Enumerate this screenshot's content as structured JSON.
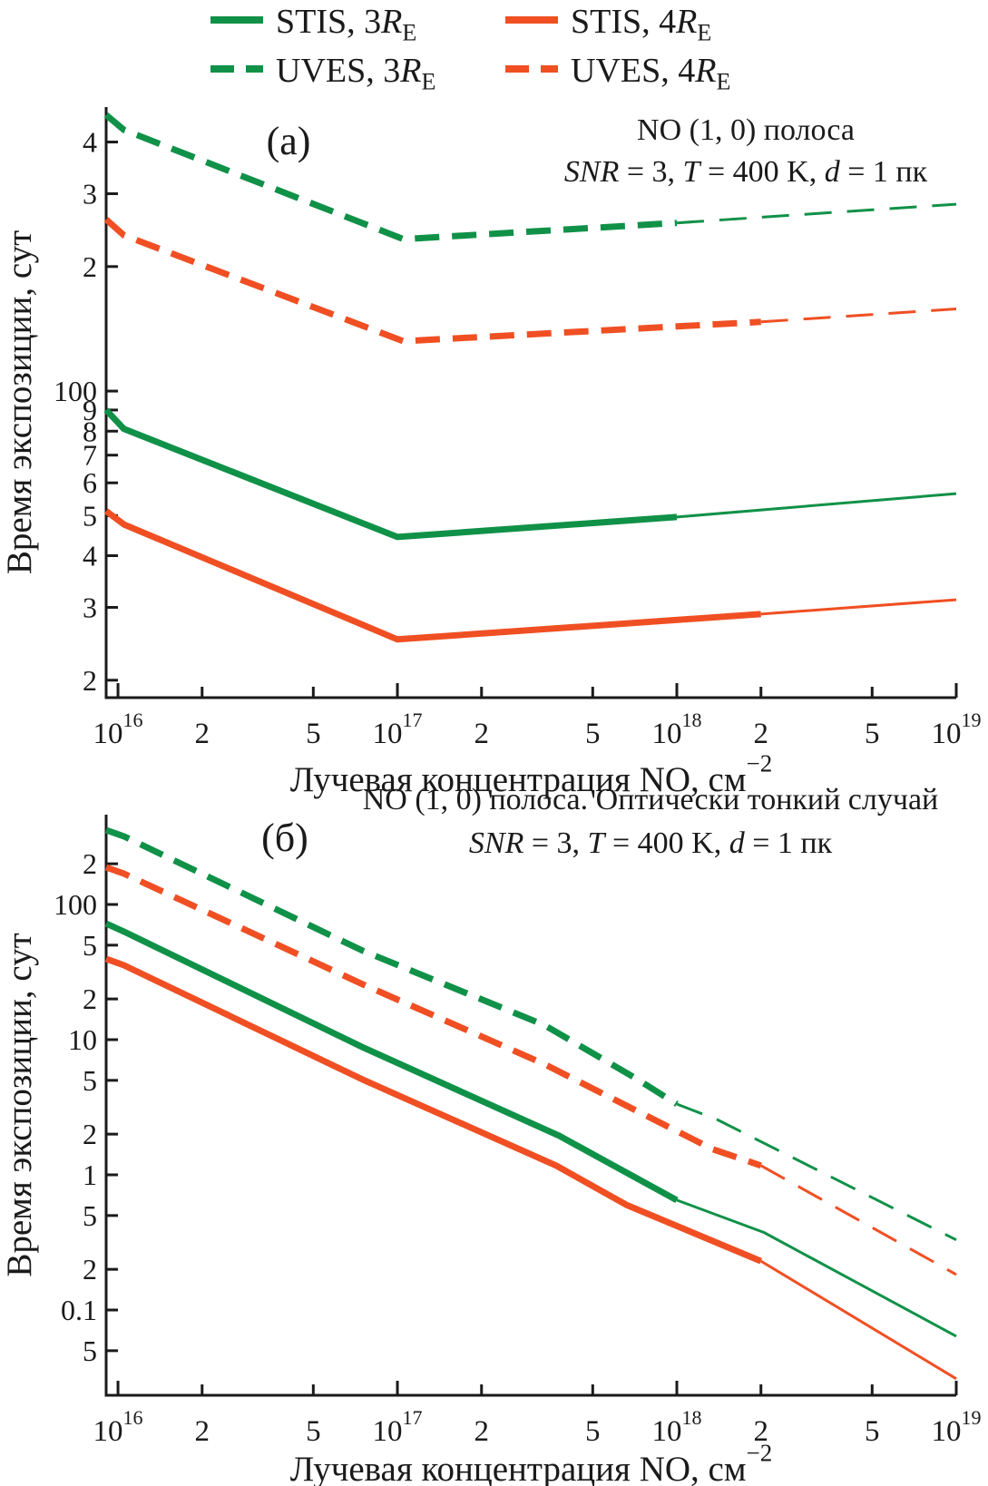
{
  "figure": {
    "background": "#ffffff",
    "colors": {
      "green": "#109148",
      "red": "#F04F23",
      "axis": "#1a1a1a",
      "text": "#1a1a1a"
    }
  },
  "legend": {
    "items": [
      {
        "name": "stis-3re",
        "label": "STIS, 3R_E",
        "parts": [
          {
            "t": "STIS, 3"
          },
          {
            "t": "R",
            "i": true
          },
          {
            "t": "E",
            "sub": true
          }
        ],
        "color": "green",
        "dashed": false
      },
      {
        "name": "stis-4re",
        "label": "STIS, 4R_E",
        "parts": [
          {
            "t": "STIS, 4"
          },
          {
            "t": "R",
            "i": true
          },
          {
            "t": "E",
            "sub": true
          }
        ],
        "color": "red",
        "dashed": false
      },
      {
        "name": "uves-3re",
        "label": "UVES, 3R_E",
        "parts": [
          {
            "t": "UVES, 3"
          },
          {
            "t": "R",
            "i": true
          },
          {
            "t": "E",
            "sub": true
          }
        ],
        "color": "green",
        "dashed": true
      },
      {
        "name": "uves-4re",
        "label": "UVES, 4R_E",
        "parts": [
          {
            "t": "UVES, 4"
          },
          {
            "t": "R",
            "i": true
          },
          {
            "t": "E",
            "sub": true
          }
        ],
        "color": "red",
        "dashed": true
      }
    ]
  },
  "chart_data": [
    {
      "type": "line",
      "panel_label": "(а)",
      "title": "NO (1, 0) полоса",
      "subtitle": "SNR = 3, T = 400 K, d = 1 пк",
      "subtitle_parts": [
        {
          "t": "SNR",
          "i": true
        },
        {
          "t": " = 3, "
        },
        {
          "t": "T",
          "i": true
        },
        {
          "t": " = 400 K, "
        },
        {
          "t": "d",
          "i": true
        },
        {
          "t": " = 1 пк"
        }
      ],
      "xlabel": "Лучевая концентрация NO, см⁻²",
      "xlabel_parts": [
        {
          "t": "Лучевая концентрация NO, см"
        },
        {
          "t": "−2",
          "sup": true
        }
      ],
      "ylabel": "Время экспозиции, сут",
      "grid": false,
      "x_axis": {
        "scale": "log",
        "min": 9070000000000000.0,
        "max": 1e+19,
        "ticks": [
          {
            "v": 1e+16,
            "base": "10",
            "sup": "16"
          },
          {
            "v": 2e+16,
            "base": "2"
          },
          {
            "v": 5e+16,
            "base": "5"
          },
          {
            "v": 1e+17,
            "base": "10",
            "sup": "17"
          },
          {
            "v": 2e+17,
            "base": "2"
          },
          {
            "v": 5e+17,
            "base": "5"
          },
          {
            "v": 1e+18,
            "base": "10",
            "sup": "18"
          },
          {
            "v": 2e+18,
            "base": "2"
          },
          {
            "v": 5e+18,
            "base": "5"
          },
          {
            "v": 1e+19,
            "base": "10",
            "sup": "19"
          }
        ]
      },
      "y_axis": {
        "scale": "log",
        "min": 18.15,
        "max": 486,
        "ticks": [
          {
            "v": 400,
            "label": "4"
          },
          {
            "v": 300,
            "label": "3"
          },
          {
            "v": 200,
            "label": "2"
          },
          {
            "v": 100,
            "label": "100"
          },
          {
            "v": 90,
            "label": "9"
          },
          {
            "v": 80,
            "label": "8"
          },
          {
            "v": 70,
            "label": "7"
          },
          {
            "v": 60,
            "label": "6"
          },
          {
            "v": 50,
            "label": "5"
          },
          {
            "v": 40,
            "label": "4"
          },
          {
            "v": 30,
            "label": "3"
          },
          {
            "v": 20,
            "label": "2"
          }
        ]
      },
      "series": [
        {
          "name": "UVES, 3RE",
          "color": "green",
          "dashed": true,
          "thin_from": 1e+18,
          "points": [
            [
              9070000000000000.0,
              465
            ],
            [
              1.05e+16,
              428
            ],
            [
              1.05e+17,
              233
            ],
            [
              1e+18,
              255
            ],
            [
              1e+19,
              283
            ]
          ]
        },
        {
          "name": "UVES, 4RE",
          "color": "red",
          "dashed": true,
          "thin_from": 2e+18,
          "points": [
            [
              9070000000000000.0,
              260
            ],
            [
              1.05e+16,
              238
            ],
            [
              1.05e+17,
              132
            ],
            [
              2e+18,
              147
            ],
            [
              1e+19,
              158
            ]
          ]
        },
        {
          "name": "STIS, 3RE",
          "color": "green",
          "dashed": false,
          "thin_from": 1e+18,
          "points": [
            [
              9070000000000000.0,
              90
            ],
            [
              1.05e+16,
              81
            ],
            [
              1e+17,
              44.4
            ],
            [
              1e+18,
              49.6
            ],
            [
              1e+19,
              56.5
            ]
          ]
        },
        {
          "name": "STIS, 4RE",
          "color": "red",
          "dashed": false,
          "thin_from": 2e+18,
          "points": [
            [
              9070000000000000.0,
              51.3
            ],
            [
              1.05e+16,
              47.6
            ],
            [
              1e+17,
              25.1
            ],
            [
              2e+18,
              28.9
            ],
            [
              1e+19,
              31.3
            ]
          ]
        }
      ]
    },
    {
      "type": "line",
      "panel_label": "(б)",
      "title": "NO (1, 0) полоса. Оптически тонкий случай",
      "subtitle": "SNR = 3, T = 400 K, d = 1 пк",
      "subtitle_parts": [
        {
          "t": "SNR",
          "i": true
        },
        {
          "t": " = 3, "
        },
        {
          "t": "T",
          "i": true
        },
        {
          "t": " = 400 K, "
        },
        {
          "t": "d",
          "i": true
        },
        {
          "t": " = 1 пк"
        }
      ],
      "xlabel": "Лучевая концентрация NO, см⁻²",
      "xlabel_parts": [
        {
          "t": "Лучевая концентрация NO, см"
        },
        {
          "t": "−2",
          "sup": true
        }
      ],
      "ylabel": "Время экспозиции, сут",
      "grid": false,
      "x_axis": {
        "scale": "log",
        "min": 9070000000000000.0,
        "max": 1e+19,
        "ticks": [
          {
            "v": 1e+16,
            "base": "10",
            "sup": "16"
          },
          {
            "v": 2e+16,
            "base": "2"
          },
          {
            "v": 5e+16,
            "base": "5"
          },
          {
            "v": 1e+17,
            "base": "10",
            "sup": "17"
          },
          {
            "v": 2e+17,
            "base": "2"
          },
          {
            "v": 5e+17,
            "base": "5"
          },
          {
            "v": 1e+18,
            "base": "10",
            "sup": "18"
          },
          {
            "v": 2e+18,
            "base": "2"
          },
          {
            "v": 5e+18,
            "base": "5"
          },
          {
            "v": 1e+19,
            "base": "10",
            "sup": "19"
          }
        ]
      },
      "y_axis": {
        "scale": "log",
        "min": 0.0234,
        "max": 461.6,
        "ticks": [
          {
            "v": 200,
            "label": "2"
          },
          {
            "v": 100,
            "label": "100"
          },
          {
            "v": 50,
            "label": "5"
          },
          {
            "v": 20,
            "label": "2"
          },
          {
            "v": 10,
            "label": "10"
          },
          {
            "v": 5,
            "label": "5"
          },
          {
            "v": 2,
            "label": "2"
          },
          {
            "v": 1,
            "label": "1"
          },
          {
            "v": 0.5,
            "label": "5"
          },
          {
            "v": 0.2,
            "label": "2"
          },
          {
            "v": 0.1,
            "label": "0.1"
          },
          {
            "v": 0.05,
            "label": "5"
          }
        ]
      },
      "series": [
        {
          "name": "UVES, 3RE",
          "color": "green",
          "dashed": true,
          "thin_from": 1e+18,
          "points": [
            [
              9070000000000000.0,
              355
            ],
            [
              1.05e+16,
              319
            ],
            [
              7.5e+16,
              45.5
            ],
            [
              3.36e+17,
              12.8
            ],
            [
              7.1e+17,
              5.2
            ],
            [
              1e+18,
              3.34
            ],
            [
              1.4e+18,
              2.55
            ],
            [
              1e+19,
              0.33
            ]
          ]
        },
        {
          "name": "UVES, 4RE",
          "color": "red",
          "dashed": true,
          "thin_from": 2e+18,
          "points": [
            [
              9070000000000000.0,
              188
            ],
            [
              1.05e+16,
              169
            ],
            [
              7.5e+16,
              25.7
            ],
            [
              3.36e+17,
              6.59
            ],
            [
              1.34e+18,
              1.55
            ],
            [
              2e+18,
              1.17
            ],
            [
              1e+19,
              0.183
            ]
          ]
        },
        {
          "name": "STIS, 3RE",
          "color": "green",
          "dashed": false,
          "thin_from": 1e+18,
          "points": [
            [
              9070000000000000.0,
              72.3
            ],
            [
              1.05e+16,
              63
            ],
            [
              7.5e+16,
              8.8
            ],
            [
              3.8e+17,
              1.94
            ],
            [
              1e+18,
              0.65
            ],
            [
              2.05e+18,
              0.375
            ],
            [
              1e+19,
              0.064
            ]
          ]
        },
        {
          "name": "STIS, 4RE",
          "color": "red",
          "dashed": false,
          "thin_from": 2e+18,
          "points": [
            [
              9070000000000000.0,
              39.6
            ],
            [
              1.05e+16,
              35.5
            ],
            [
              7.5e+16,
              5.07
            ],
            [
              3.7e+17,
              1.17
            ],
            [
              6.6e+17,
              0.6
            ],
            [
              2e+18,
              0.23
            ],
            [
              1e+19,
              0.031
            ]
          ]
        }
      ]
    }
  ]
}
